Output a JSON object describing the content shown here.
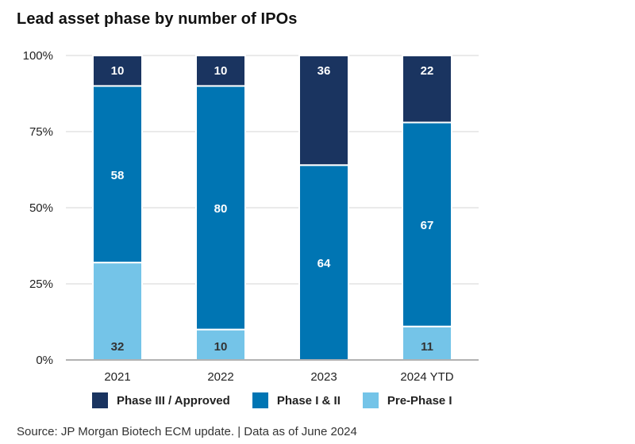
{
  "chart_data": {
    "type": "bar",
    "stacked": true,
    "normalized": true,
    "title": "Lead asset phase by number of IPOs",
    "xlabel": "",
    "ylabel": "",
    "ylim": [
      0,
      100
    ],
    "yticks": [
      0,
      25,
      50,
      75,
      100
    ],
    "ytick_labels": [
      "0%",
      "25%",
      "50%",
      "75%",
      "100%"
    ],
    "grid": true,
    "categories": [
      "2021",
      "2022",
      "2023",
      "2024 YTD"
    ],
    "series": [
      {
        "name": "Pre-Phase I",
        "color": "#74C4E8",
        "label_color": "#333333",
        "values": [
          32,
          10,
          0,
          11
        ]
      },
      {
        "name": "Phase I & II",
        "color": "#0075B3",
        "label_color": "#ffffff",
        "values": [
          58,
          80,
          64,
          67
        ]
      },
      {
        "name": "Phase III / Approved",
        "color": "#1A3460",
        "label_color": "#ffffff",
        "values": [
          10,
          10,
          36,
          22
        ]
      }
    ],
    "legend_order": [
      "Phase III / Approved",
      "Phase I & II",
      "Pre-Phase I"
    ],
    "legend_position": "bottom",
    "source": "Source: JP Morgan Biotech ECM update. | Data as of June 2024"
  }
}
